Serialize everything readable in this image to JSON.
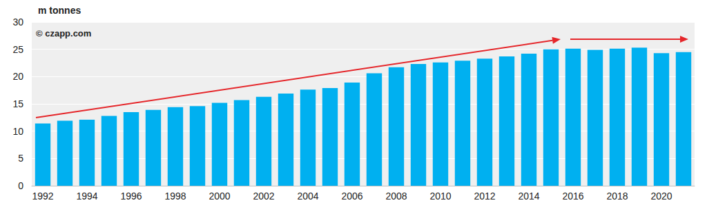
{
  "chart_data": {
    "type": "bar",
    "ylabel": "m tonnes",
    "annotations": [
      "© czapp.com"
    ],
    "categories": [
      "1992",
      null,
      "1994",
      null,
      "1996",
      null,
      "1998",
      null,
      "2000",
      null,
      "2002",
      null,
      "2004",
      null,
      "2006",
      null,
      "2008",
      null,
      "2010",
      null,
      "2012",
      null,
      "2014",
      null,
      "2016",
      null,
      "2018",
      null,
      "2020",
      null
    ],
    "values": [
      11.4,
      11.9,
      12.1,
      12.8,
      13.5,
      13.9,
      14.4,
      14.6,
      15.2,
      15.7,
      16.3,
      16.9,
      17.6,
      17.9,
      18.9,
      20.6,
      21.7,
      22.3,
      22.6,
      22.9,
      23.3,
      23.7,
      24.2,
      25.0,
      25.1,
      24.9,
      25.1,
      25.3,
      24.3,
      24.5
    ],
    "color": "#00b0f0",
    "ylim": [
      0,
      30
    ],
    "yticks": [
      0,
      5,
      10,
      15,
      20,
      25,
      30
    ],
    "grid": true
  }
}
